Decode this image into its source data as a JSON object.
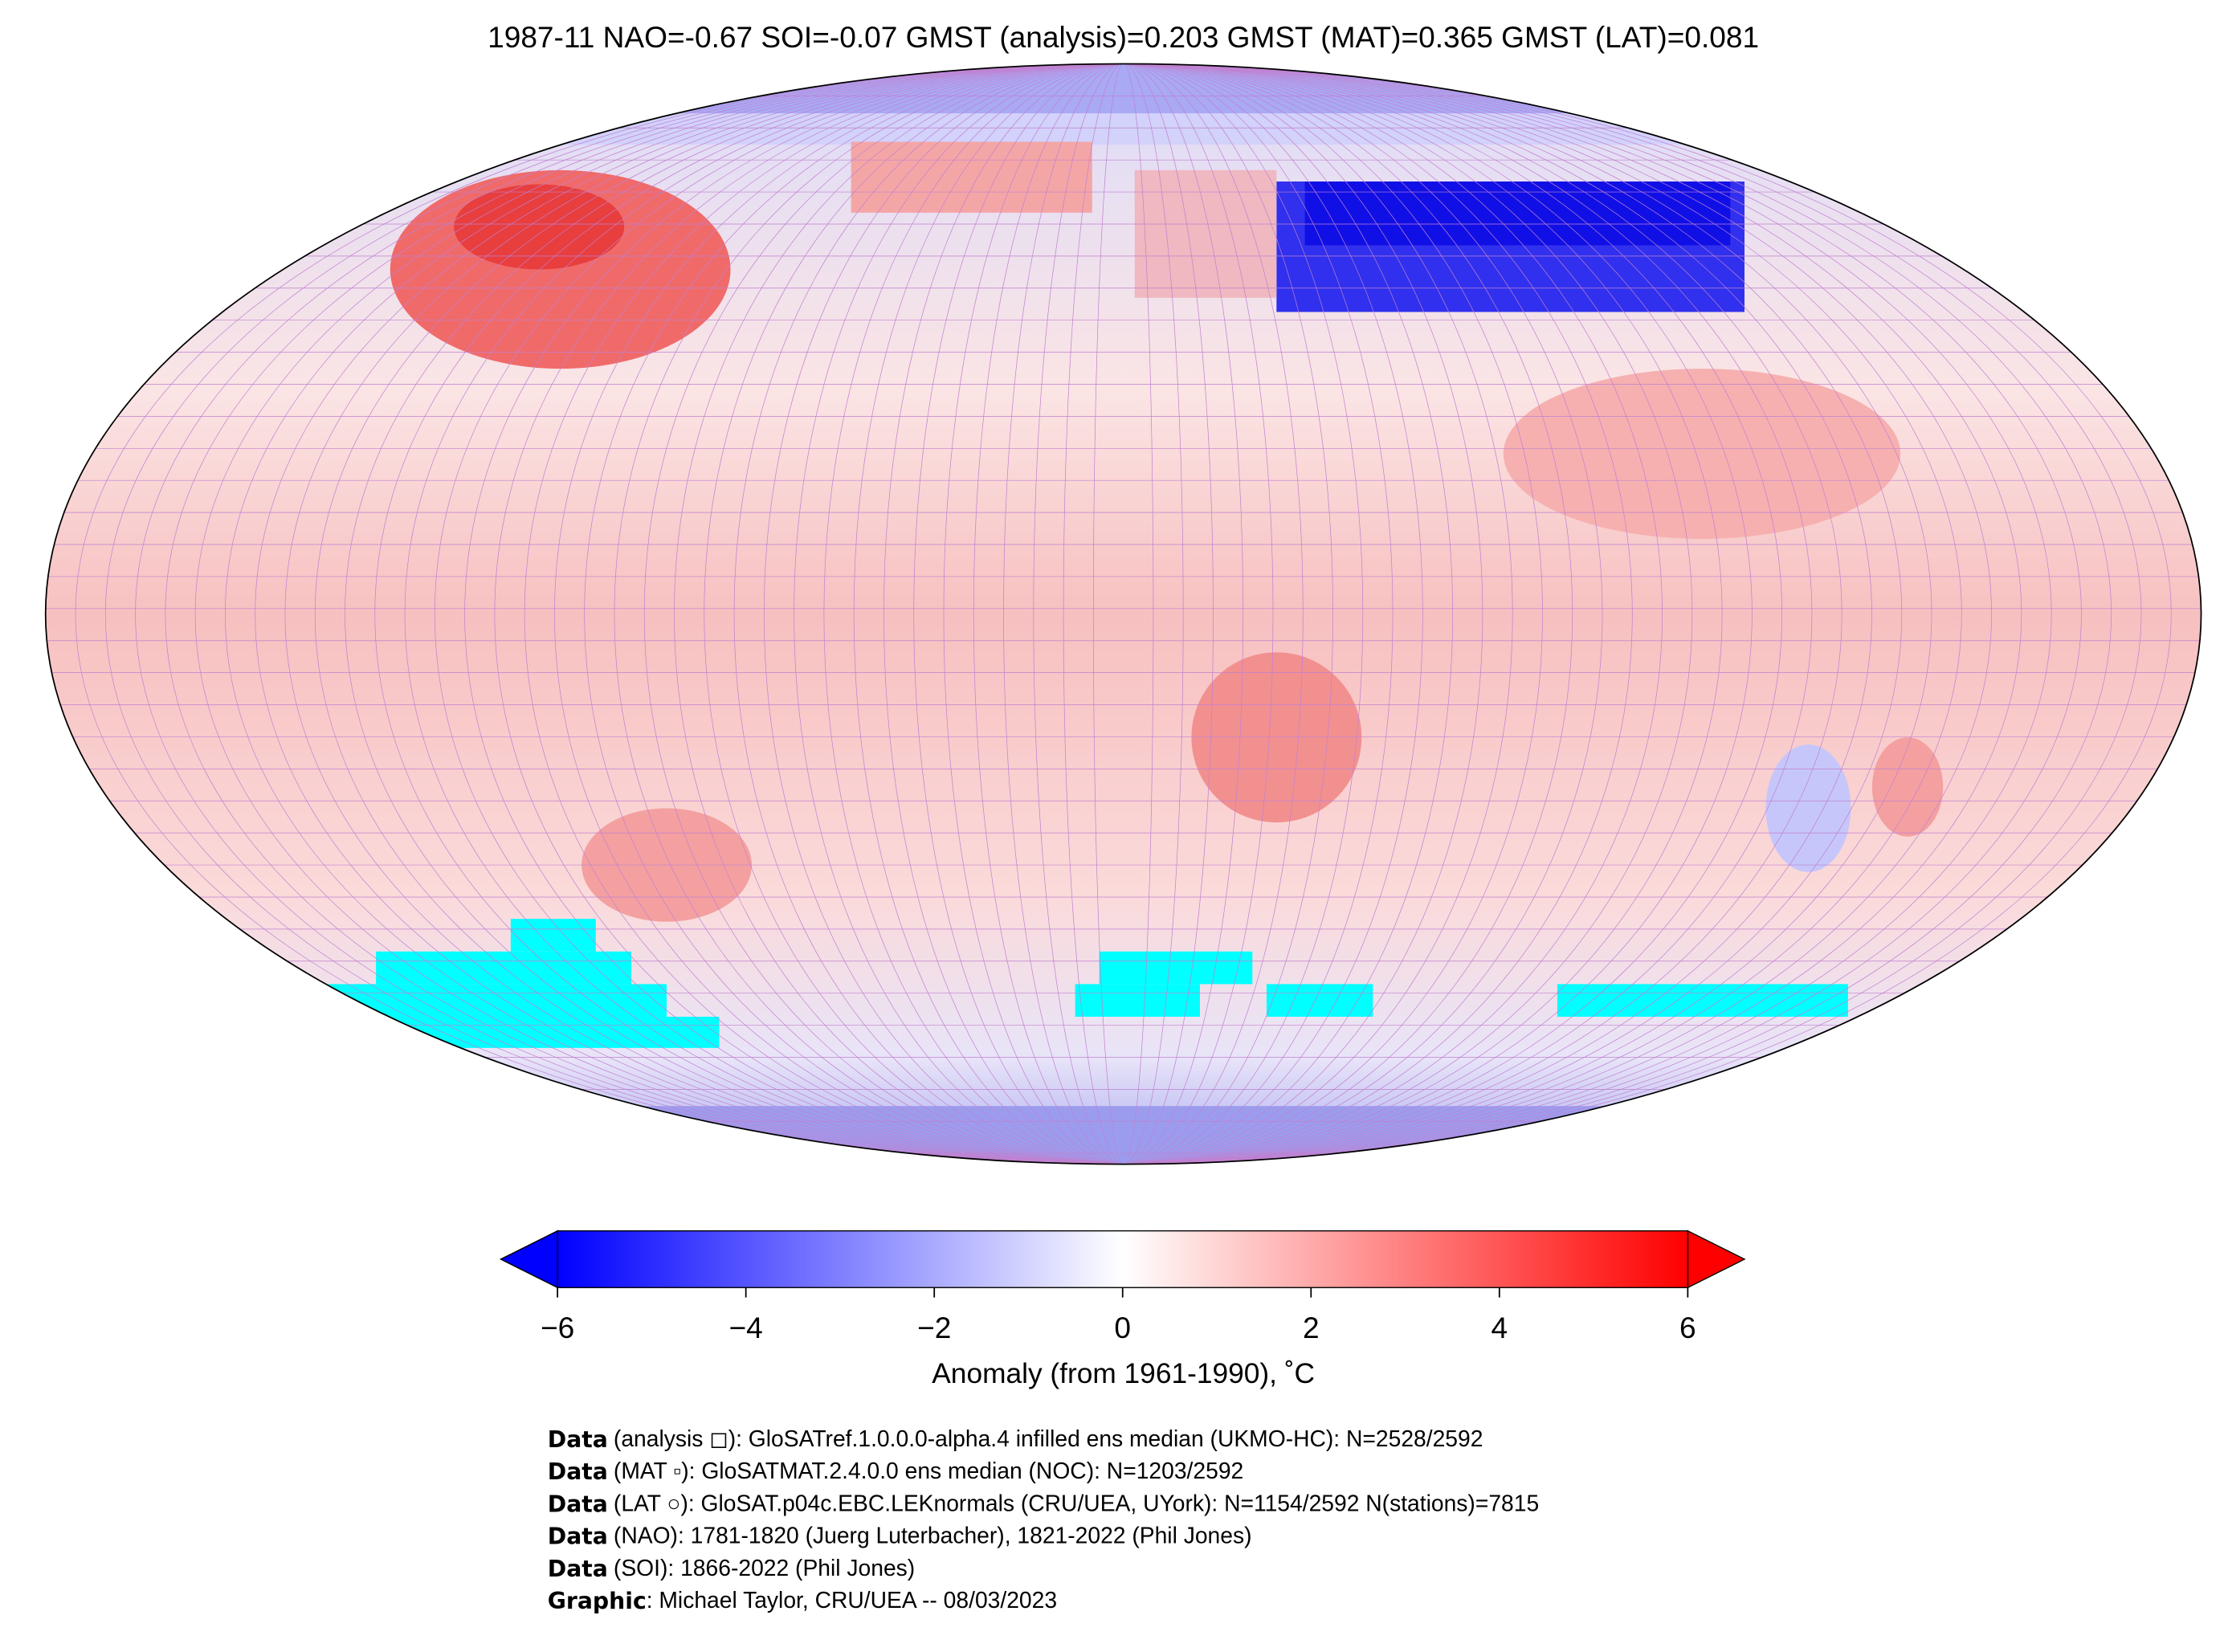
{
  "title": "1987-11 NAO=-0.67 SOI=-0.07 GMST (analysis)=0.203 GMST (MAT)=0.365 GMST (LAT)=0.081",
  "colorbar": {
    "label": "Anomaly (from 1961-1990), ˚C",
    "lim": [
      -6,
      6
    ],
    "ticks": [
      {
        "value": -6,
        "label": "−6"
      },
      {
        "value": -4,
        "label": "−4"
      },
      {
        "value": -2,
        "label": "−2"
      },
      0,
      2,
      4,
      6
    ],
    "colors": [
      "#0000ff",
      "#ffffff",
      "#ff0000"
    ]
  },
  "footer": [
    {
      "label": "Data",
      "text": "(analysis ◻): GloSATref.1.0.0.0-alpha.4 infilled ens median (UKMO-HC): N=2528/2592"
    },
    {
      "label": "Data",
      "text": "(MAT ▫): GloSATMAT.2.4.0.0 ens median (NOC): N=1203/2592"
    },
    {
      "label": "Data",
      "text": "(LAT ○): GloSAT.p04c.EBC.LEKnormals (CRU/UEA, UYork): N=1154/2592 N(stations)=7815"
    },
    {
      "label": "Data",
      "text": "(NAO): 1781-1820 (Juerg Luterbacher), 1821-2022 (Phil Jones)"
    },
    {
      "label": "Data",
      "text": "(SOI): 1866-2022 (Phil Jones)"
    },
    {
      "label": "Graphic",
      "text": ": Michael Taylor, CRU/UEA -- 08/03/2023"
    }
  ]
}
